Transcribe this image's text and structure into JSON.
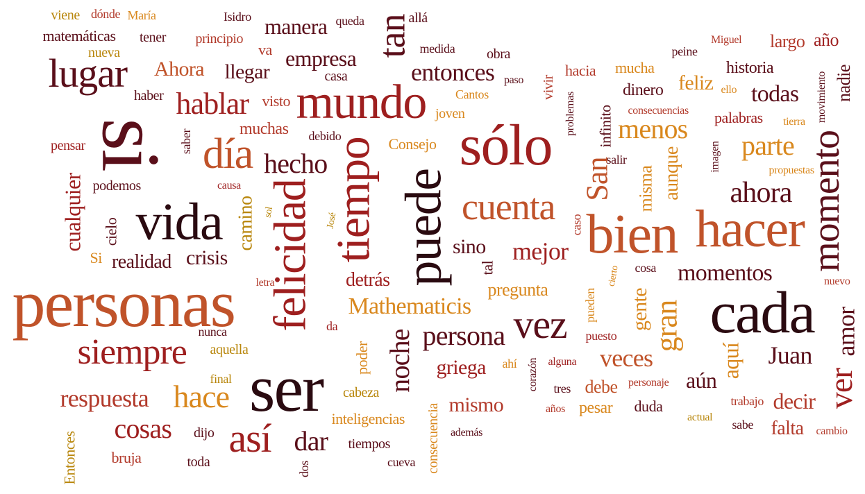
{
  "words": [
    "personas",
    "si",
    "ser",
    "felicidad",
    "tiempo",
    "puede",
    "sólo",
    "mundo",
    "vida",
    "hacer",
    "bien",
    "cada",
    "momento",
    "día",
    "así",
    "vez",
    "siempre",
    "cuenta",
    "hablar",
    "lugar",
    "hecho",
    "hace",
    "noche",
    "gran",
    "ver",
    "ahora",
    "parte",
    "persona",
    "mejor",
    "tan",
    "entonces",
    "menos",
    "cosas",
    "dar",
    "Mathematicis",
    "momentos",
    "San",
    "respuesta",
    "Juan",
    "amor",
    "veces",
    "cualquier",
    "camino",
    "crisis",
    "realidad",
    "mismo",
    "decir",
    "aún",
    "aquí",
    "griega",
    "empresa",
    "manera",
    "llegar",
    "Ahora",
    "todas",
    "feliz",
    "sino",
    "detrás",
    "pregunta",
    "gente",
    "aunque",
    "misma",
    "historia",
    "nadie",
    "debe",
    "pesar",
    "falta",
    "largo",
    "año",
    "hacia",
    "mucha",
    "dinero",
    "muchas",
    "visto",
    "Consejo",
    "inteligencias",
    "cabeza",
    "poder",
    "consecuencia",
    "tiempos",
    "cueva",
    "dos",
    "toda",
    "dijo",
    "bruja",
    "Entonces",
    "aquella",
    "nunca",
    "final",
    "da",
    "José",
    "sol",
    "letra",
    "cielo",
    "Si",
    "podemos",
    "causa",
    "pensar",
    "saber",
    "haber",
    "debido",
    "joven",
    "Cantos",
    "paso",
    "vivir",
    "problemas",
    "infinito",
    "consecuencias",
    "palabras",
    "tierra",
    "movimiento",
    "propuestas",
    "imagen",
    "salir",
    "caso",
    "tal",
    "cierto",
    "cosa",
    "pueden",
    "nuevo",
    "puesto",
    "alguna",
    "corazón",
    "ahí",
    "tres",
    "años",
    "personaje",
    "duda",
    "trabajo",
    "actual",
    "sabe",
    "cambio",
    "además",
    "viene",
    "dónde",
    "María",
    "Isidro",
    "queda",
    "allá",
    "medida",
    "obra",
    "peine",
    "Miguel",
    "matemáticas",
    "tener",
    "nueva",
    "principio",
    "va",
    "casa",
    "ello"
  ],
  "palette": {
    "background": "#ffffff",
    "colors": [
      "#5a0f1a",
      "#9e1f1f",
      "#c0532a",
      "#d9881e",
      "#b8860b",
      "#2a0a10",
      "#b23a2b",
      "#d47f2a"
    ]
  }
}
